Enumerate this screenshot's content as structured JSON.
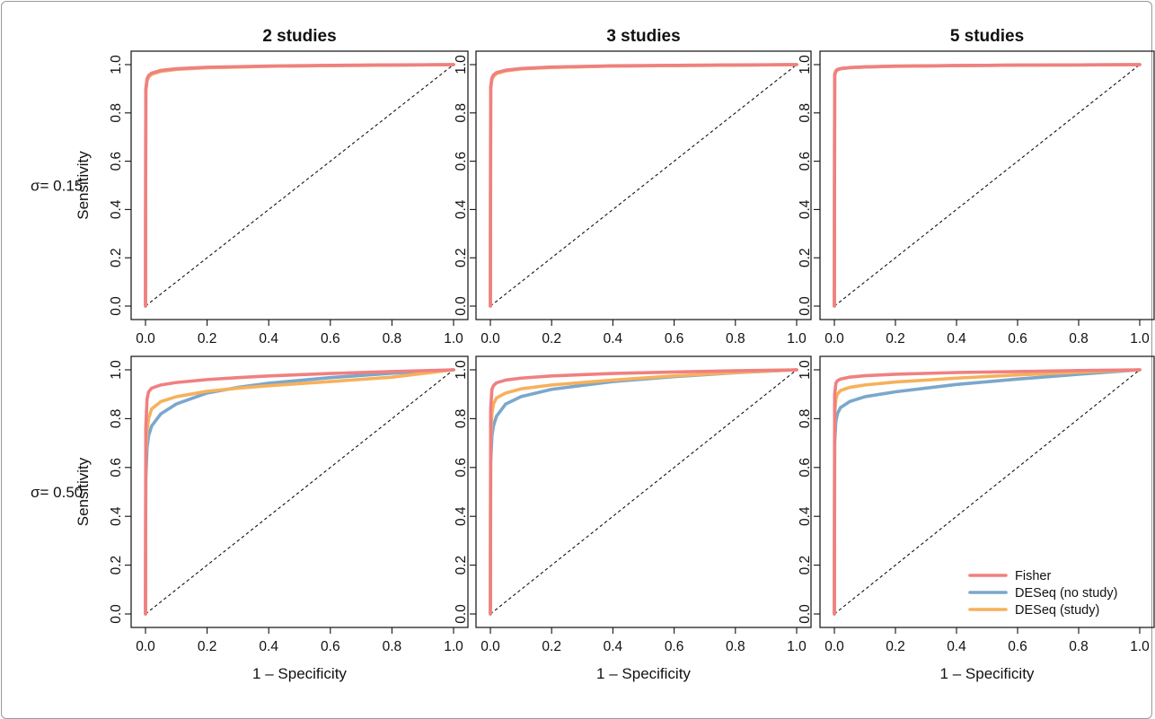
{
  "figure": {
    "column_titles": [
      "2 studies",
      "3 studies",
      "5 studies"
    ],
    "row_labels": [
      "σ= 0.15",
      "σ= 0.50"
    ],
    "xlabel": "1 – Specificity",
    "ylabel": "Sensitivity"
  },
  "legend": {
    "entries": [
      {
        "name": "Fisher",
        "color": "#F08080"
      },
      {
        "name": "DESeq (no study)",
        "color": "#7BA7CC"
      },
      {
        "name": "DESeq (study)",
        "color": "#F6B15C"
      }
    ]
  },
  "chart_data": [
    {
      "type": "line",
      "title": "2 studies",
      "row": "σ= 0.15",
      "xlabel": "",
      "ylabel": "Sensitivity",
      "xlim": [
        0,
        1
      ],
      "ylim": [
        0,
        1
      ],
      "grid": false,
      "x": [
        0,
        0.001,
        0.005,
        0.01,
        0.02,
        0.05,
        0.1,
        0.2,
        0.4,
        0.6,
        0.8,
        1.0
      ],
      "series": [
        {
          "name": "Fisher",
          "values": [
            0,
            0.9,
            0.94,
            0.955,
            0.965,
            0.976,
            0.983,
            0.989,
            0.994,
            0.997,
            0.999,
            1.0
          ]
        },
        {
          "name": "DESeq (no study)",
          "values": [
            0,
            0.89,
            0.935,
            0.95,
            0.962,
            0.974,
            0.982,
            0.988,
            0.993,
            0.996,
            0.998,
            1.0
          ]
        },
        {
          "name": "DESeq (study)",
          "values": [
            0,
            0.89,
            0.932,
            0.948,
            0.96,
            0.972,
            0.98,
            0.987,
            0.993,
            0.996,
            0.998,
            1.0
          ]
        }
      ]
    },
    {
      "type": "line",
      "title": "3 studies",
      "row": "σ= 0.15",
      "xlabel": "",
      "ylabel": "",
      "xlim": [
        0,
        1
      ],
      "ylim": [
        0,
        1
      ],
      "grid": false,
      "x": [
        0,
        0.001,
        0.005,
        0.01,
        0.02,
        0.05,
        0.1,
        0.2,
        0.4,
        0.6,
        0.8,
        1.0
      ],
      "series": [
        {
          "name": "Fisher",
          "values": [
            0,
            0.91,
            0.945,
            0.957,
            0.967,
            0.977,
            0.984,
            0.99,
            0.995,
            0.997,
            0.999,
            1.0
          ]
        },
        {
          "name": "DESeq (no study)",
          "values": [
            0,
            0.9,
            0.94,
            0.953,
            0.964,
            0.975,
            0.983,
            0.989,
            0.994,
            0.996,
            0.998,
            1.0
          ]
        },
        {
          "name": "DESeq (study)",
          "values": [
            0,
            0.9,
            0.938,
            0.951,
            0.963,
            0.974,
            0.982,
            0.988,
            0.994,
            0.996,
            0.998,
            1.0
          ]
        }
      ]
    },
    {
      "type": "line",
      "title": "5 studies",
      "row": "σ= 0.15",
      "xlabel": "",
      "ylabel": "",
      "xlim": [
        0,
        1
      ],
      "ylim": [
        0,
        1
      ],
      "grid": false,
      "x": [
        0,
        0.001,
        0.005,
        0.01,
        0.02,
        0.05,
        0.1,
        0.2,
        0.4,
        0.6,
        0.8,
        1.0
      ],
      "series": [
        {
          "name": "Fisher",
          "values": [
            0,
            0.96,
            0.975,
            0.98,
            0.984,
            0.988,
            0.991,
            0.994,
            0.996,
            0.998,
            0.999,
            1.0
          ]
        },
        {
          "name": "DESeq (no study)",
          "values": [
            0,
            0.955,
            0.972,
            0.978,
            0.983,
            0.987,
            0.99,
            0.993,
            0.996,
            0.998,
            0.999,
            1.0
          ]
        },
        {
          "name": "DESeq (study)",
          "values": [
            0,
            0.955,
            0.972,
            0.978,
            0.983,
            0.987,
            0.99,
            0.993,
            0.996,
            0.998,
            0.999,
            1.0
          ]
        }
      ]
    },
    {
      "type": "line",
      "title": "",
      "row": "σ= 0.50",
      "xlabel": "1 – Specificity",
      "ylabel": "Sensitivity",
      "xlim": [
        0,
        1
      ],
      "ylim": [
        0,
        1
      ],
      "grid": false,
      "x": [
        0,
        0.001,
        0.005,
        0.01,
        0.02,
        0.05,
        0.1,
        0.2,
        0.3,
        0.4,
        0.6,
        0.8,
        1.0
      ],
      "series": [
        {
          "name": "Fisher",
          "values": [
            0,
            0.76,
            0.88,
            0.91,
            0.925,
            0.938,
            0.948,
            0.96,
            0.968,
            0.975,
            0.985,
            0.993,
            1.0
          ]
        },
        {
          "name": "DESeq (no study)",
          "values": [
            0,
            0.55,
            0.68,
            0.73,
            0.77,
            0.82,
            0.86,
            0.905,
            0.928,
            0.945,
            0.968,
            0.986,
            1.0
          ]
        },
        {
          "name": "DESeq (study)",
          "values": [
            0,
            0.66,
            0.75,
            0.8,
            0.84,
            0.87,
            0.89,
            0.912,
            0.925,
            0.935,
            0.952,
            0.97,
            1.0
          ]
        }
      ]
    },
    {
      "type": "line",
      "title": "",
      "row": "σ= 0.50",
      "xlabel": "1 – Specificity",
      "ylabel": "",
      "xlim": [
        0,
        1
      ],
      "ylim": [
        0,
        1
      ],
      "grid": false,
      "x": [
        0,
        0.001,
        0.005,
        0.01,
        0.02,
        0.05,
        0.1,
        0.2,
        0.4,
        0.6,
        0.8,
        1.0
      ],
      "series": [
        {
          "name": "Fisher",
          "values": [
            0,
            0.84,
            0.92,
            0.935,
            0.947,
            0.958,
            0.966,
            0.975,
            0.985,
            0.991,
            0.996,
            1.0
          ]
        },
        {
          "name": "DESeq (no study)",
          "values": [
            0,
            0.62,
            0.73,
            0.77,
            0.81,
            0.86,
            0.89,
            0.92,
            0.952,
            0.972,
            0.988,
            1.0
          ]
        },
        {
          "name": "DESeq (study)",
          "values": [
            0,
            0.72,
            0.82,
            0.86,
            0.885,
            0.905,
            0.922,
            0.938,
            0.958,
            0.975,
            0.989,
            1.0
          ]
        }
      ]
    },
    {
      "type": "line",
      "title": "",
      "row": "σ= 0.50",
      "xlabel": "1 – Specificity",
      "ylabel": "",
      "xlim": [
        0,
        1
      ],
      "ylim": [
        0,
        1
      ],
      "grid": false,
      "x": [
        0,
        0.001,
        0.005,
        0.01,
        0.02,
        0.05,
        0.1,
        0.2,
        0.4,
        0.6,
        0.8,
        1.0
      ],
      "series": [
        {
          "name": "Fisher",
          "values": [
            0,
            0.9,
            0.945,
            0.955,
            0.962,
            0.97,
            0.976,
            0.982,
            0.989,
            0.993,
            0.997,
            1.0
          ]
        },
        {
          "name": "DESeq (no study)",
          "values": [
            0,
            0.7,
            0.79,
            0.82,
            0.845,
            0.87,
            0.89,
            0.91,
            0.94,
            0.962,
            0.982,
            1.0
          ]
        },
        {
          "name": "DESeq (study)",
          "values": [
            0,
            0.82,
            0.88,
            0.9,
            0.915,
            0.928,
            0.938,
            0.95,
            0.966,
            0.979,
            0.99,
            1.0
          ]
        }
      ]
    }
  ]
}
